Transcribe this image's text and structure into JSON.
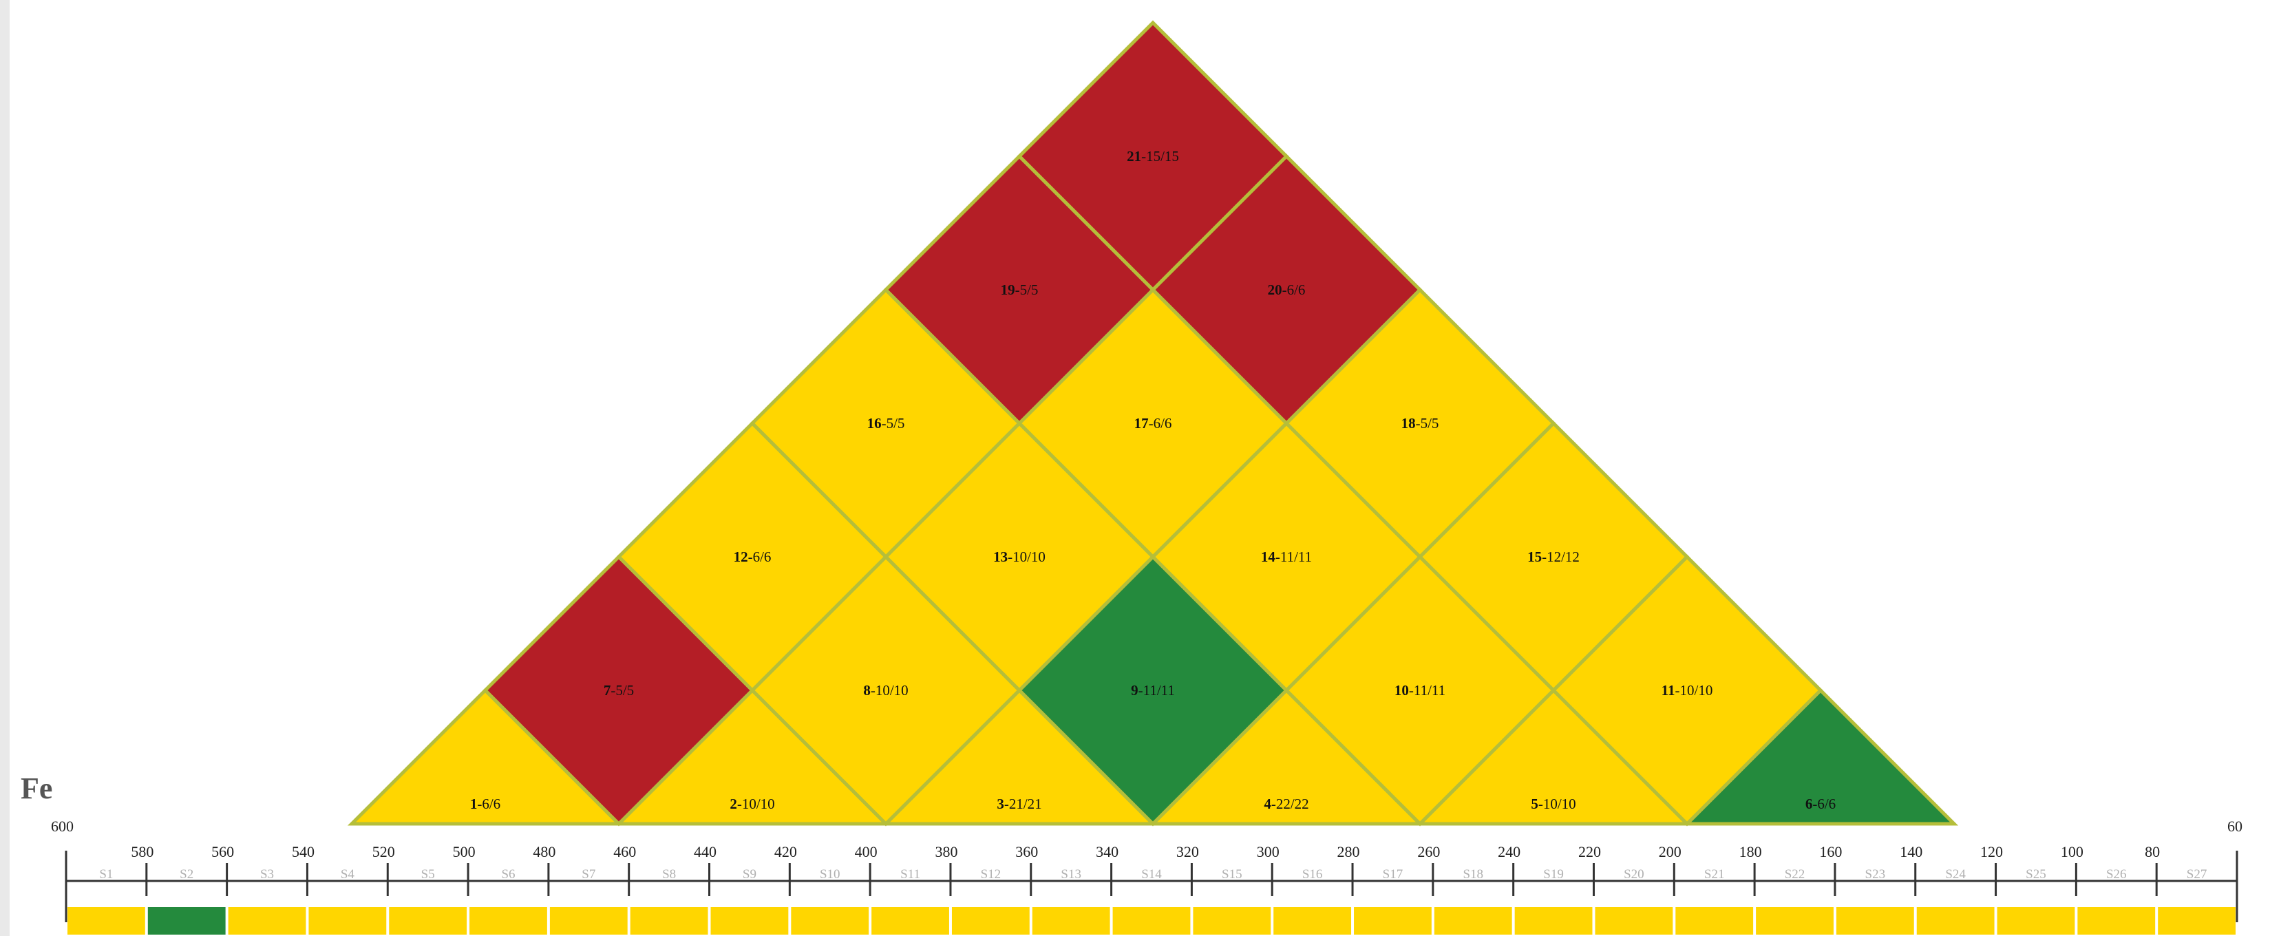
{
  "colors": {
    "yellow": "#FFD600",
    "red": "#B41E26",
    "green": "#248A3D",
    "cell_border": "#B5BE3A",
    "axis": "#333333"
  },
  "element": "Fe",
  "scale": {
    "min_label": "600",
    "max_label": "60",
    "ticks": [
      "580",
      "560",
      "540",
      "520",
      "500",
      "480",
      "460",
      "440",
      "420",
      "400",
      "380",
      "360",
      "340",
      "320",
      "300",
      "280",
      "260",
      "240",
      "220",
      "200",
      "180",
      "160",
      "140",
      "120",
      "100",
      "80"
    ]
  },
  "segments": [
    {
      "label": "S1",
      "color": "yellow"
    },
    {
      "label": "S2",
      "color": "green"
    },
    {
      "label": "S3",
      "color": "yellow"
    },
    {
      "label": "S4",
      "color": "yellow"
    },
    {
      "label": "S5",
      "color": "yellow"
    },
    {
      "label": "S6",
      "color": "yellow"
    },
    {
      "label": "S7",
      "color": "yellow"
    },
    {
      "label": "S8",
      "color": "yellow"
    },
    {
      "label": "S9",
      "color": "yellow"
    },
    {
      "label": "S10",
      "color": "yellow"
    },
    {
      "label": "S11",
      "color": "yellow"
    },
    {
      "label": "S12",
      "color": "yellow"
    },
    {
      "label": "S13",
      "color": "yellow"
    },
    {
      "label": "S14",
      "color": "yellow"
    },
    {
      "label": "S15",
      "color": "yellow"
    },
    {
      "label": "S16",
      "color": "yellow"
    },
    {
      "label": "S17",
      "color": "yellow"
    },
    {
      "label": "S18",
      "color": "yellow"
    },
    {
      "label": "S19",
      "color": "yellow"
    },
    {
      "label": "S20",
      "color": "yellow"
    },
    {
      "label": "S21",
      "color": "yellow"
    },
    {
      "label": "S22",
      "color": "yellow"
    },
    {
      "label": "S23",
      "color": "yellow"
    },
    {
      "label": "S24",
      "color": "yellow"
    },
    {
      "label": "S25",
      "color": "yellow"
    },
    {
      "label": "S26",
      "color": "yellow"
    },
    {
      "label": "S27",
      "color": "yellow"
    }
  ],
  "cells": [
    {
      "row": 0,
      "index": 0,
      "num": "1",
      "value": "-6/6",
      "color": "yellow"
    },
    {
      "row": 0,
      "index": 1,
      "num": "2",
      "value": "-10/10",
      "color": "yellow"
    },
    {
      "row": 0,
      "index": 2,
      "num": "3",
      "value": "-21/21",
      "color": "yellow"
    },
    {
      "row": 0,
      "index": 3,
      "num": "4",
      "value": "-22/22",
      "color": "yellow"
    },
    {
      "row": 0,
      "index": 4,
      "num": "5",
      "value": "-10/10",
      "color": "yellow"
    },
    {
      "row": 0,
      "index": 5,
      "num": "6",
      "value": "-6/6",
      "color": "green"
    },
    {
      "row": 1,
      "index": 0,
      "num": "7",
      "value": "-5/5",
      "color": "red"
    },
    {
      "row": 1,
      "index": 1,
      "num": "8",
      "value": "-10/10",
      "color": "yellow"
    },
    {
      "row": 1,
      "index": 2,
      "num": "9",
      "value": "-11/11",
      "color": "green"
    },
    {
      "row": 1,
      "index": 3,
      "num": "10",
      "value": "-11/11",
      "color": "yellow"
    },
    {
      "row": 1,
      "index": 4,
      "num": "11",
      "value": "-10/10",
      "color": "yellow"
    },
    {
      "row": 2,
      "index": 0,
      "num": "12",
      "value": "-6/6",
      "color": "yellow"
    },
    {
      "row": 2,
      "index": 1,
      "num": "13",
      "value": "-10/10",
      "color": "yellow"
    },
    {
      "row": 2,
      "index": 2,
      "num": "14",
      "value": "-11/11",
      "color": "yellow"
    },
    {
      "row": 2,
      "index": 3,
      "num": "15",
      "value": "-12/12",
      "color": "yellow"
    },
    {
      "row": 3,
      "index": 0,
      "num": "16",
      "value": "-5/5",
      "color": "yellow"
    },
    {
      "row": 3,
      "index": 1,
      "num": "17",
      "value": "-6/6",
      "color": "yellow"
    },
    {
      "row": 3,
      "index": 2,
      "num": "18",
      "value": "-5/5",
      "color": "yellow"
    },
    {
      "row": 4,
      "index": 0,
      "num": "19",
      "value": "-5/5",
      "color": "red"
    },
    {
      "row": 4,
      "index": 1,
      "num": "20",
      "value": "-6/6",
      "color": "red"
    },
    {
      "row": 5,
      "index": 0,
      "num": "21",
      "value": "-15/15",
      "color": "red"
    }
  ]
}
